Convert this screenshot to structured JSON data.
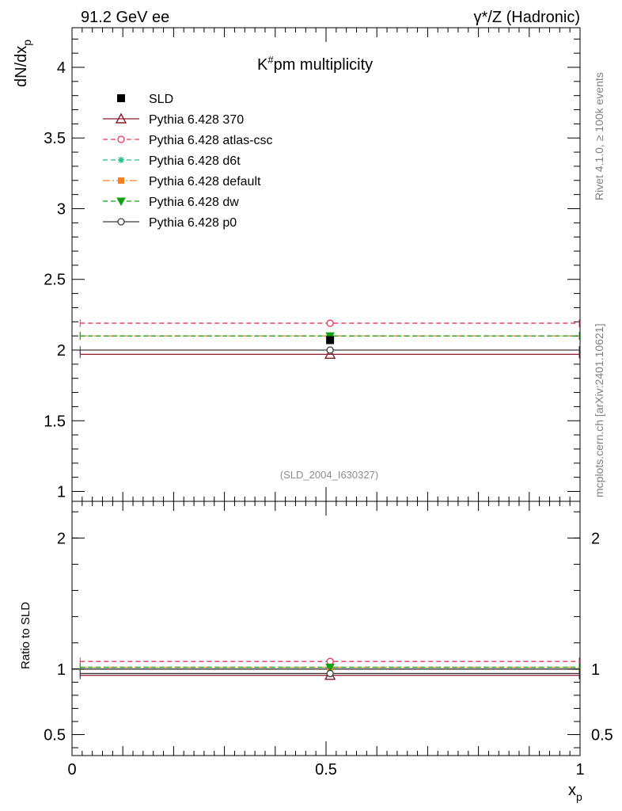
{
  "header": {
    "left": "91.2 GeV ee",
    "right": "γ*/Z (Hadronic)"
  },
  "side_labels": {
    "top": "Rivet 4.1.0, ≥ 100k events",
    "bottom": "mcplots.cern.ch [arXiv:2401.10621]"
  },
  "chart_data": [
    {
      "type": "line",
      "title_main": "K",
      "title_sup": "#",
      "title_rest": "pm  multiplicity",
      "xlabel_main": "x",
      "xlabel_sub": "p",
      "ylabel_main": "dN/dx",
      "ylabel_sub": "p",
      "annotation": "(SLD_2004_I630327)",
      "xlim": [
        0,
        1
      ],
      "ylim": [
        0.93,
        4.28
      ],
      "y_ticks": [
        "1",
        "1.5",
        "2",
        "2.5",
        "3",
        "3.5",
        "4"
      ],
      "x_ticks": [
        "0",
        "0.5",
        "1"
      ],
      "x_range": [
        0.016,
        1.0
      ],
      "x_center": 0.508,
      "data": {
        "name": "SLD",
        "x": 0.508,
        "y": 2.07,
        "err": 0.01,
        "color": "#000000"
      },
      "series": [
        {
          "name": "Pythia 6.428 370",
          "y": 1.97,
          "color": "#8b1a2b",
          "marker": "triangle",
          "dash": ""
        },
        {
          "name": "Pythia 6.428 atlas-csc",
          "y": 2.19,
          "color": "#e8365a",
          "marker": "circle",
          "dash": "6,4"
        },
        {
          "name": "Pythia 6.428 d6t",
          "y": 2.1,
          "color": "#1ebf8c",
          "marker": "star",
          "dash": "6,4"
        },
        {
          "name": "Pythia 6.428 default",
          "y": 2.1,
          "color": "#f58220",
          "marker": "square",
          "dash": "9,3,2,3"
        },
        {
          "name": "Pythia 6.428 dw",
          "y": 2.1,
          "color": "#12a012",
          "marker": "tri-down",
          "dash": "6,4"
        },
        {
          "name": "Pythia 6.428 p0",
          "y": 2.0,
          "color": "#3a3a3a",
          "marker": "circle",
          "dash": ""
        }
      ]
    },
    {
      "type": "line",
      "ylabel": "Ratio to SLD",
      "ylim": [
        0.34,
        2.28
      ],
      "y_ticks": [
        "0.5",
        "1",
        "2"
      ],
      "series": [
        {
          "name": "Pythia 6.428 370",
          "ratio": 0.952,
          "color": "#8b1a2b",
          "marker": "triangle",
          "dash": ""
        },
        {
          "name": "Pythia 6.428 atlas-csc",
          "ratio": 1.058,
          "color": "#e8365a",
          "marker": "circle",
          "dash": "6,4"
        },
        {
          "name": "Pythia 6.428 d6t",
          "ratio": 1.014,
          "color": "#1ebf8c",
          "marker": "star",
          "dash": "6,4"
        },
        {
          "name": "Pythia 6.428 default",
          "ratio": 1.014,
          "color": "#f58220",
          "marker": "square",
          "dash": "9,3,2,3"
        },
        {
          "name": "Pythia 6.428 dw",
          "ratio": 1.014,
          "color": "#12a012",
          "marker": "tri-down",
          "dash": "6,4"
        },
        {
          "name": "Pythia 6.428 p0",
          "ratio": 0.966,
          "color": "#3a3a3a",
          "marker": "circle",
          "dash": ""
        }
      ]
    }
  ]
}
